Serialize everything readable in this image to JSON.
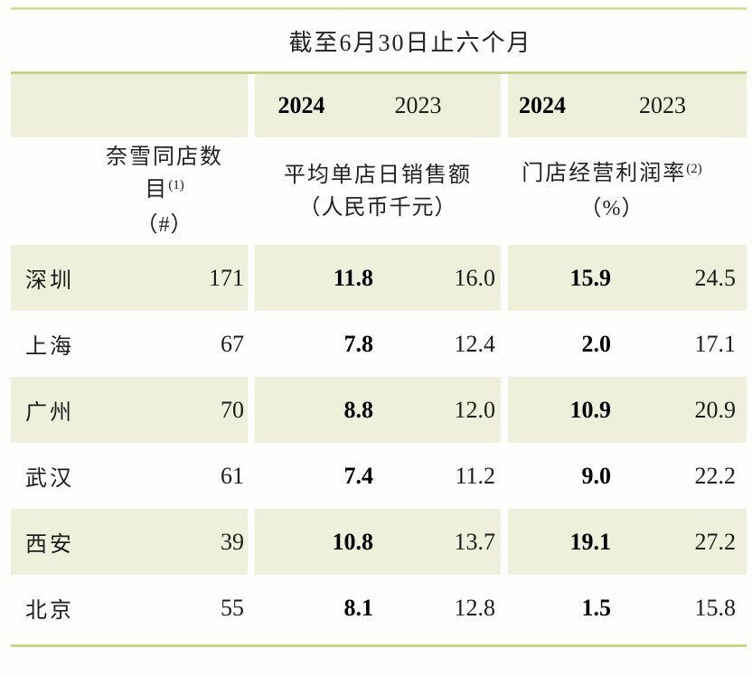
{
  "table": {
    "period_title": "截至6月30日止六个月",
    "year_headers": {
      "sales_2024": "2024",
      "sales_2023": "2023",
      "margin_2024": "2024",
      "margin_2023": "2023"
    },
    "column_groups": {
      "stores": {
        "line1": "奈雪同店数",
        "line2": "目",
        "line2_sup": "(1)",
        "unit": "（#）"
      },
      "sales": {
        "line1": "平均单店日销售额",
        "unit": "（人民币千元）"
      },
      "margin": {
        "line1": "门店经营利润率",
        "line1_sup": "(2)",
        "unit": "（%）"
      }
    },
    "rows": [
      {
        "city": "深圳",
        "count": "171",
        "sales_2024": "11.8",
        "sales_2023": "16.0",
        "margin_2024": "15.9",
        "margin_2023": "24.5"
      },
      {
        "city": "上海",
        "count": "67",
        "sales_2024": "7.8",
        "sales_2023": "12.4",
        "margin_2024": "2.0",
        "margin_2023": "17.1"
      },
      {
        "city": "广州",
        "count": "70",
        "sales_2024": "8.8",
        "sales_2023": "12.0",
        "margin_2024": "10.9",
        "margin_2023": "20.9"
      },
      {
        "city": "武汉",
        "count": "61",
        "sales_2024": "7.4",
        "sales_2023": "11.2",
        "margin_2024": "9.0",
        "margin_2023": "22.2"
      },
      {
        "city": "西安",
        "count": "39",
        "sales_2024": "10.8",
        "sales_2023": "13.7",
        "margin_2024": "19.1",
        "margin_2023": "27.2"
      },
      {
        "city": "北京",
        "count": "55",
        "sales_2024": "8.1",
        "sales_2023": "12.8",
        "margin_2024": "1.5",
        "margin_2023": "15.8"
      }
    ],
    "colors": {
      "row_shade": "#eef0db",
      "rule_green": "#b4cc70",
      "rule_light": "#c8d88a"
    }
  }
}
